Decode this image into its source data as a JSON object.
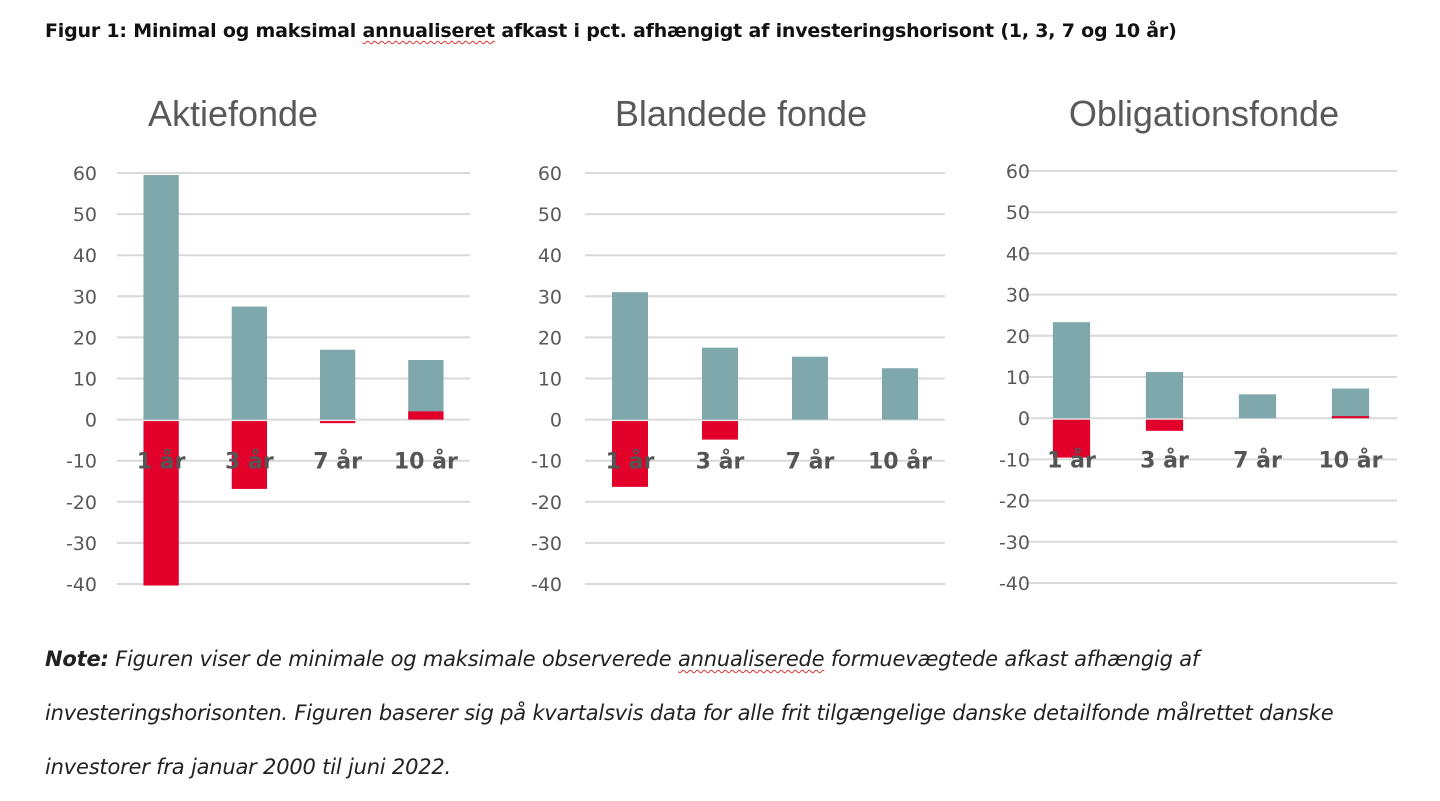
{
  "figure_title": {
    "pre": "Figur 1: Minimal og maksimal ",
    "squiggle": "annualiseret",
    "post": " afkast i pct. afhængigt af investeringshorisont (1, 3, 7 og 10 år)"
  },
  "colors": {
    "max": "#7ea8ab",
    "min": "#e2002a",
    "grid": "#d9d9d9",
    "tick_text": "#595959",
    "category_text": "#555555"
  },
  "chart_data": [
    {
      "type": "bar",
      "title": "Aktiefonde",
      "categories": [
        "1 år",
        "3 år",
        "7 år",
        "10 år"
      ],
      "series": [
        {
          "values": [
            59.5,
            27.5,
            17,
            14.5
          ],
          "role": "max"
        },
        {
          "values": [
            -40,
            -16.5,
            -0.5,
            2
          ],
          "role": "min"
        }
      ],
      "ylim": [
        -40,
        60
      ],
      "yticks": [
        "60",
        "50",
        "40",
        "30",
        "20",
        "10",
        "0",
        "-10",
        "-20",
        "-30",
        "-40"
      ],
      "grid": true
    },
    {
      "type": "bar",
      "title": "Blandede fonde",
      "categories": [
        "1 år",
        "3 år",
        "7 år",
        "10 år"
      ],
      "series": [
        {
          "values": [
            31,
            17.5,
            15.3,
            12.5
          ],
          "role": "max"
        },
        {
          "values": [
            -16,
            -4.5,
            0,
            0
          ],
          "role": "min"
        }
      ],
      "ylim": [
        -40,
        60
      ],
      "yticks": [
        "60",
        "50",
        "40",
        "30",
        "20",
        "10",
        "0",
        "-10",
        "-20",
        "-30",
        "-40"
      ],
      "grid": true
    },
    {
      "type": "bar",
      "title": "Obligationsfonde",
      "categories": [
        "1 år",
        "3 år",
        "7 år",
        "10 år"
      ],
      "series": [
        {
          "values": [
            23.3,
            11.2,
            5.8,
            7.2
          ],
          "role": "max"
        },
        {
          "values": [
            -9.2,
            -2.7,
            0,
            0.5
          ],
          "role": "min"
        }
      ],
      "ylim": [
        -40,
        60
      ],
      "yticks": [
        "60",
        "50",
        "40",
        "30",
        "20",
        "10",
        "0",
        "-10",
        "-20",
        "-30",
        "-40"
      ],
      "grid": true
    }
  ],
  "note": {
    "label": "Note:",
    "t1": " Figuren viser de minimale og maksimale observerede ",
    "squiggle": "annualiserede",
    "t2": " formuevægtede afkast afhængig af investeringshorisonten. Figuren baserer sig på kvartalsvis data for alle frit tilgængelige danske detailfonde målrettet danske investorer fra januar 2000 til juni 2022."
  }
}
